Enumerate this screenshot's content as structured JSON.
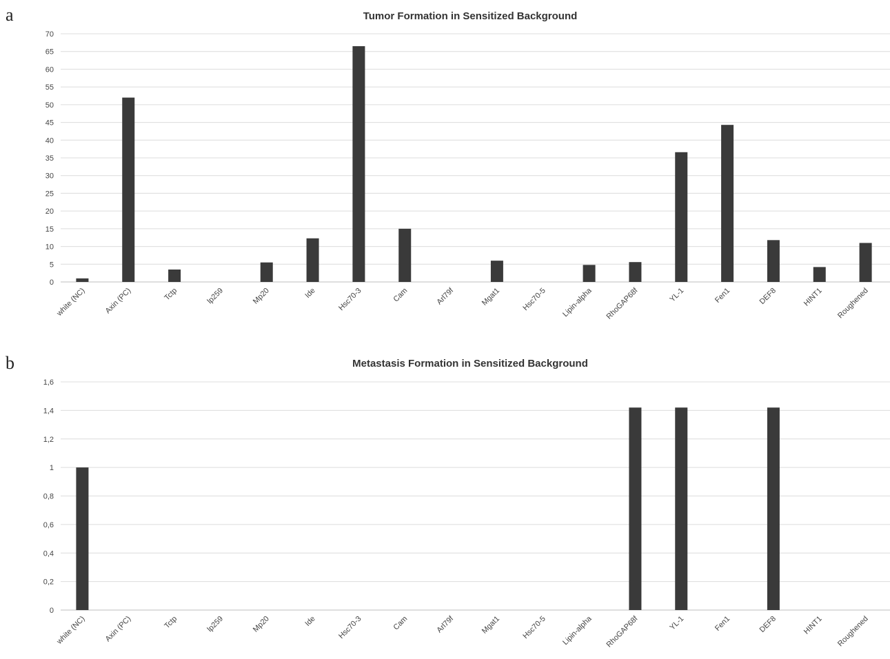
{
  "panels": [
    {
      "letter": "a"
    },
    {
      "letter": "b"
    }
  ],
  "chart_data": [
    {
      "type": "bar",
      "title": "Tumor Formation in Sensitized Background",
      "xlabel": "",
      "ylabel": "",
      "ylim": [
        0,
        70
      ],
      "yticks": [
        "0",
        "5",
        "10",
        "15",
        "20",
        "25",
        "30",
        "35",
        "40",
        "45",
        "50",
        "55",
        "60",
        "65",
        "70"
      ],
      "ytick_values": [
        0,
        5,
        10,
        15,
        20,
        25,
        30,
        35,
        40,
        45,
        50,
        55,
        60,
        65,
        70
      ],
      "grid": true,
      "legend": "none",
      "categories": [
        "white (NC)",
        "Axin (PC)",
        "Tctp",
        "lp259",
        "Mp20",
        "Ide",
        "Hsc70-3",
        "Cam",
        "Arl79f",
        "Mgat1",
        "Hsc70-5",
        "Lipin-alpha",
        "RhoGAP68f",
        "YL-1",
        "Fen1",
        "DEF8",
        "HINT1",
        "Roughened"
      ],
      "values": [
        1,
        52,
        3.5,
        0,
        5.5,
        12.3,
        66.5,
        15,
        0,
        6,
        0,
        4.8,
        5.6,
        36.6,
        44.3,
        11.8,
        4.2,
        11
      ]
    },
    {
      "type": "bar",
      "title": "Metastasis Formation in Sensitized Background",
      "xlabel": "",
      "ylabel": "",
      "ylim": [
        0,
        1.6
      ],
      "yticks": [
        "0",
        "0,2",
        "0,4",
        "0,6",
        "0,8",
        "1",
        "1,2",
        "1,4",
        "1,6"
      ],
      "ytick_values": [
        0,
        0.2,
        0.4,
        0.6,
        0.8,
        1,
        1.2,
        1.4,
        1.6
      ],
      "grid": true,
      "legend": "none",
      "categories": [
        "white (NC)",
        "Axin (PC)",
        "Tctp",
        "lp259",
        "Mp20",
        "Ide",
        "Hsc70-3",
        "Cam",
        "Arl79f",
        "Mgat1",
        "Hsc70-5",
        "Lipin-alpha",
        "RhoGAP68f",
        "YL-1",
        "Fen1",
        "DEF8",
        "HINT1",
        "Roughened"
      ],
      "values": [
        1,
        0,
        0,
        0,
        0,
        0,
        0,
        0,
        0,
        0,
        0,
        0,
        1.42,
        1.42,
        0,
        1.42,
        0,
        0
      ]
    }
  ],
  "colors": {
    "bar": "#3a3a3a",
    "grid": "#dcdcdc"
  }
}
